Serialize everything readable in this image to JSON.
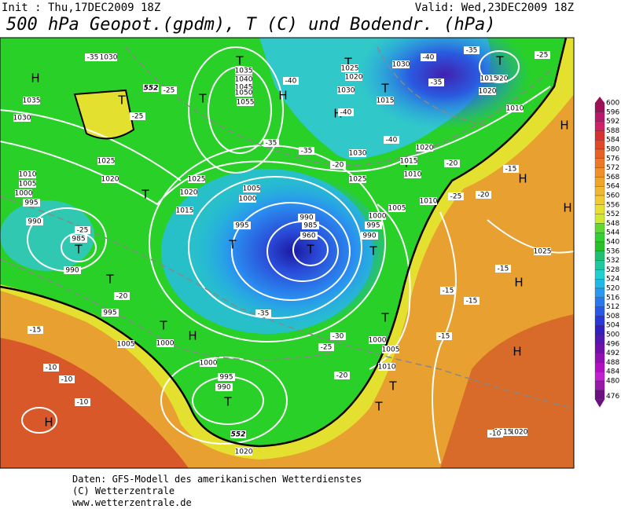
{
  "header": {
    "init": "Init : Thu,17DEC2009 18Z",
    "valid": "Valid: Wed,23DEC2009 18Z",
    "title": "500 hPa Geopot.(gpdm), T (C) und Bodendr. (hPa)"
  },
  "colorbar": {
    "labels": [
      600,
      596,
      592,
      588,
      584,
      580,
      576,
      572,
      568,
      564,
      560,
      556,
      552,
      548,
      544,
      540,
      536,
      532,
      528,
      524,
      520,
      516,
      512,
      508,
      504,
      500,
      496,
      492,
      488,
      484,
      480,
      476
    ]
  },
  "map": {
    "centers": [
      "H",
      "H",
      "H",
      "H",
      "H",
      "H",
      "H",
      "H",
      "H",
      "H",
      "T",
      "T",
      "T",
      "T",
      "T",
      "T",
      "T",
      "T",
      "T",
      "T",
      "T",
      "T",
      "T",
      "T",
      "T",
      "T",
      "T",
      "T"
    ],
    "isobar_labels": [
      "1030",
      "1035",
      "1030",
      "1025",
      "1020",
      "1010",
      "1005",
      "1000",
      "995",
      "990",
      "985",
      "990",
      "995",
      "1005",
      "1000",
      "1000",
      "995",
      "990",
      "1035",
      "1040",
      "1045",
      "1050",
      "1055",
      "1025",
      "1020",
      "1015",
      "1005",
      "1000",
      "995",
      "990",
      "985",
      "960",
      "1020",
      "1015",
      "1010",
      "1030",
      "1025",
      "1030",
      "1010",
      "1015",
      "1020",
      "1025",
      "1030",
      "1020",
      "1015",
      "1010",
      "1005",
      "1000",
      "995",
      "990",
      "1025",
      "1020",
      "1020",
      "1015",
      "1000",
      "1005",
      "1010",
      "1020"
    ],
    "temp_labels": [
      "-35",
      "-25",
      "-25",
      "-25",
      "-20",
      "-15",
      "-10",
      "-10",
      "-10",
      "-40",
      "-35",
      "-40",
      "-35",
      "-35",
      "-30",
      "-25",
      "-20",
      "-40",
      "-35",
      "-35",
      "-25",
      "-20",
      "-20",
      "-15",
      "-15",
      "-15",
      "-15",
      "-10",
      "-40",
      "-25",
      "-15",
      "-20"
    ],
    "contour_552": [
      "552",
      "552"
    ]
  },
  "footer": {
    "lines": [
      "Daten: GFS-Modell des amerikanischen Wetterdienstes",
      "(C) Wetterzentrale",
      "www.wetterzentrale.de"
    ]
  }
}
